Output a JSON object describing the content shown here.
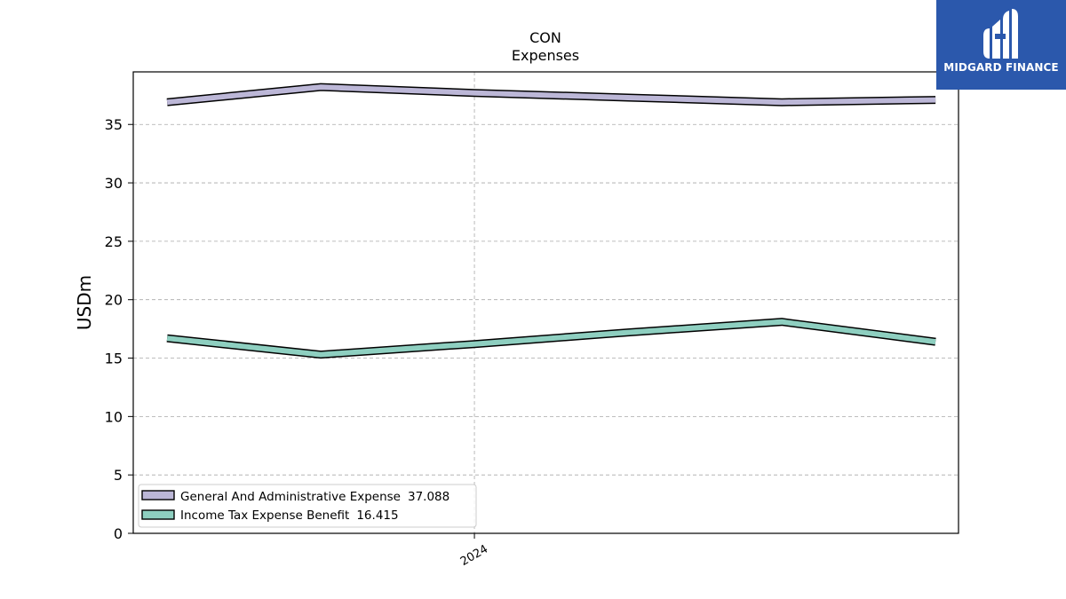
{
  "brand": {
    "name": "MIDGARD FINANCE",
    "bg_color": "#2b58ac",
    "icon": "midgard-m-logo-icon"
  },
  "chart_data": {
    "type": "line",
    "title": "CON",
    "subtitle": "Expenses",
    "ylabel": "USDm",
    "xlabel": "",
    "ylim": [
      0,
      39.5
    ],
    "yticks": [
      0,
      5,
      10,
      15,
      20,
      25,
      30,
      35
    ],
    "x": [
      0,
      1,
      2,
      3,
      4,
      5
    ],
    "xlim": [
      -0.22,
      5.15
    ],
    "xticks": [
      {
        "pos": 2,
        "label": "2024"
      }
    ],
    "grid": true,
    "legend_position": "lower-left",
    "series": [
      {
        "name": "General And Administrative Expense",
        "legend_value": "37.088",
        "color": "#bcb7d7",
        "values": [
          36.9,
          38.2,
          37.7,
          37.3,
          36.9,
          37.1
        ]
      },
      {
        "name": "Income Tax Expense Benefit",
        "legend_value": "16.415",
        "color": "#8ecfc0",
        "values": [
          16.7,
          15.3,
          16.2,
          17.2,
          18.1,
          16.4
        ]
      }
    ]
  }
}
